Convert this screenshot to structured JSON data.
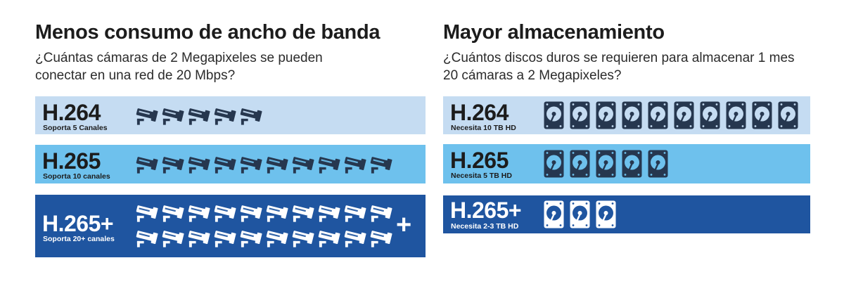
{
  "bandwidth": {
    "title": "Menos consumo de ancho de banda",
    "subtitle": "¿Cuántas cámaras de 2 Megapixeles se pueden conectar en una red de 20 Mbps?",
    "rows": [
      {
        "codec": "H.264",
        "caption": "Soporta 5 Canales",
        "cameras": 5
      },
      {
        "codec": "H.265",
        "caption": "Soporta 10 canales",
        "cameras": 10
      },
      {
        "codec": "H.265+",
        "caption": "Soporta 20+ canales",
        "cameras": 20,
        "extra": "+"
      }
    ]
  },
  "storage": {
    "title": "Mayor almacenamiento",
    "subtitle": "¿Cuántos discos duros se requieren para almacenar 1 mes 20 cámaras a 2 Megapixeles?",
    "rows": [
      {
        "codec": "H.264",
        "caption": "Necesita 10 TB HD",
        "disks": 10
      },
      {
        "codec": "H.265",
        "caption": "Necesita 5 TB HD",
        "disks": 5
      },
      {
        "codec": "H.265+",
        "caption": "Necesita 2-3 TB HD",
        "disks": 3
      }
    ]
  },
  "colors": {
    "light_blue": "#c5dcf2",
    "mid_blue": "#6ec1ed",
    "dark_blue": "#1f55a0",
    "icon_dark": "#26374f",
    "icon_light": "#ffffff"
  }
}
